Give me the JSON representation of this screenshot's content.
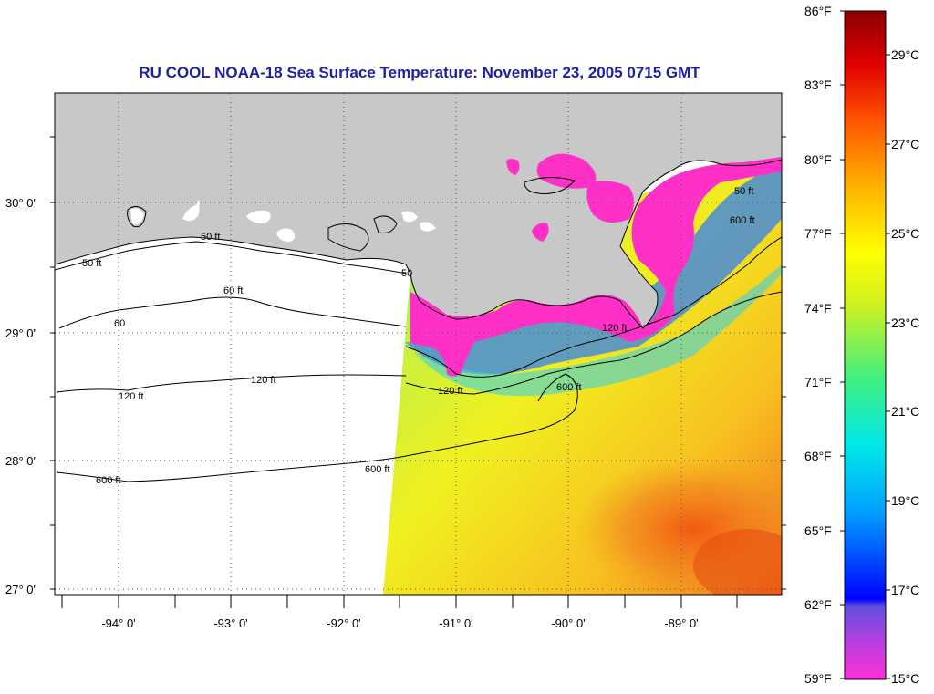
{
  "title": "RU COOL  NOAA-18  Sea Surface Temperature:  November 23, 2005 0715 GMT",
  "colors": {
    "land": "#c8c8c8",
    "title": "#1f1fa6",
    "border": "#000000"
  },
  "lat_labels": [
    "30° 0'",
    "29° 0'",
    "28° 0'",
    "27° 0'"
  ],
  "lon_labels": [
    "-94° 0'",
    "-93° 0'",
    "-92° 0'",
    "-91° 0'",
    "-90° 0'",
    "-89° 0'"
  ],
  "colorbar": {
    "fahrenheit": [
      "86°F",
      "83°F",
      "80°F",
      "77°F",
      "74°F",
      "71°F",
      "68°F",
      "65°F",
      "62°F",
      "59°F"
    ],
    "celsius": [
      "29°C",
      "27°C",
      "25°C",
      "23°C",
      "21°C",
      "19°C",
      "17°C",
      "15°C"
    ]
  },
  "contour_labels": {
    "c50_1": "50 ft",
    "c50_2": "50 ft",
    "c50_3": "50",
    "c50_4": "50 ft",
    "c60_1": "60 ft",
    "c60_2": "60",
    "c120_1": "120 ft",
    "c120_2": "120 ft",
    "c120_3": "120 ft",
    "c120_4": "120 ft",
    "c600_1": "600 ft",
    "c600_2": "600 ft",
    "c600_3": "600 ft",
    "c600_4": "600 ft"
  }
}
